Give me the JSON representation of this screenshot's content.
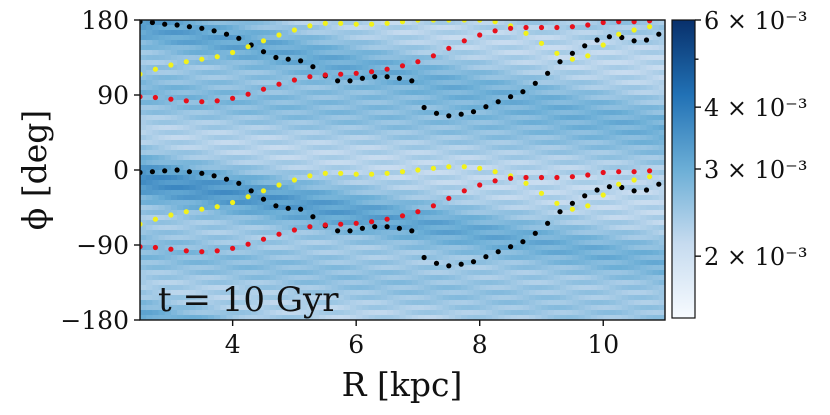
{
  "chart_data": {
    "type": "heatmap",
    "title": "",
    "xlabel": "R [kpc]",
    "ylabel": "ϕ [deg]",
    "xlim": [
      2.5,
      11.0
    ],
    "ylim": [
      -180,
      180
    ],
    "xticks": [
      4,
      6,
      8,
      10
    ],
    "xtick_labels": [
      "4",
      "6",
      "8",
      "10"
    ],
    "yticks": [
      -180,
      -90,
      0,
      90,
      180
    ],
    "ytick_labels": [
      "−180",
      "−90",
      "0",
      "90",
      "180"
    ],
    "annotation": "t = 10 Gyr",
    "colormap": "Blues",
    "colorbar": {
      "scale": "log",
      "range": [
        0.0015,
        0.006
      ],
      "ticks": [
        {
          "value": 0.006,
          "label": "6 × 10⁻³"
        },
        {
          "value": 0.004,
          "label": "4 × 10⁻³"
        },
        {
          "value": 0.003,
          "label": "3 × 10⁻³"
        },
        {
          "value": 0.002,
          "label": "2 × 10⁻³"
        }
      ],
      "minor_ticks": [
        0.005
      ]
    },
    "heatmap_ridges": [
      {
        "phi0": -10,
        "slope_deg_per_kpc": -12,
        "amplitude": 1.0
      },
      {
        "phi0": 175,
        "slope_deg_per_kpc": -14,
        "amplitude": 0.8
      },
      {
        "phi0": 95,
        "slope_deg_per_kpc": -8,
        "amplitude": 0.5
      },
      {
        "phi0": -95,
        "slope_deg_per_kpc": -10,
        "amplitude": 0.45
      }
    ],
    "series": [
      {
        "name": "black",
        "color": "#000000",
        "points": [
          {
            "R": 2.5,
            "phi": 178
          },
          {
            "R": 2.7,
            "phi": 177
          },
          {
            "R": 2.9,
            "phi": 175
          },
          {
            "R": 3.1,
            "phi": 174
          },
          {
            "R": 3.3,
            "phi": 172
          },
          {
            "R": 3.5,
            "phi": 170
          },
          {
            "R": 3.7,
            "phi": 167
          },
          {
            "R": 3.9,
            "phi": 163
          },
          {
            "R": 4.1,
            "phi": 158
          },
          {
            "R": 4.3,
            "phi": 150
          },
          {
            "R": 4.5,
            "phi": 142
          },
          {
            "R": 4.7,
            "phi": 135
          },
          {
            "R": 4.9,
            "phi": 133
          },
          {
            "R": 5.1,
            "phi": 131
          },
          {
            "R": 5.3,
            "phi": 124
          },
          {
            "R": 5.5,
            "phi": 113
          },
          {
            "R": 5.7,
            "phi": 107
          },
          {
            "R": 5.9,
            "phi": 107
          },
          {
            "R": 6.1,
            "phi": 110
          },
          {
            "R": 6.3,
            "phi": 112
          },
          {
            "R": 6.5,
            "phi": 112
          },
          {
            "R": 6.7,
            "phi": 110
          },
          {
            "R": 6.9,
            "phi": 107
          },
          {
            "R": 7.1,
            "phi": 75
          },
          {
            "R": 7.3,
            "phi": 68
          },
          {
            "R": 7.5,
            "phi": 65
          },
          {
            "R": 7.7,
            "phi": 67
          },
          {
            "R": 7.9,
            "phi": 70
          },
          {
            "R": 8.1,
            "phi": 76
          },
          {
            "R": 8.3,
            "phi": 82
          },
          {
            "R": 8.5,
            "phi": 88
          },
          {
            "R": 8.7,
            "phi": 94
          },
          {
            "R": 8.9,
            "phi": 104
          },
          {
            "R": 9.1,
            "phi": 116
          },
          {
            "R": 9.3,
            "phi": 130
          },
          {
            "R": 9.5,
            "phi": 140
          },
          {
            "R": 9.7,
            "phi": 149
          },
          {
            "R": 9.9,
            "phi": 156
          },
          {
            "R": 10.1,
            "phi": 160
          },
          {
            "R": 10.3,
            "phi": 159
          },
          {
            "R": 10.5,
            "phi": 155
          },
          {
            "R": 10.7,
            "phi": 156
          },
          {
            "R": 10.9,
            "phi": 163
          },
          {
            "R": 2.5,
            "phi": -3
          },
          {
            "R": 2.7,
            "phi": -2
          },
          {
            "R": 2.9,
            "phi": -1
          },
          {
            "R": 3.1,
            "phi": 0
          },
          {
            "R": 3.3,
            "phi": -2
          },
          {
            "R": 3.5,
            "phi": -4
          },
          {
            "R": 3.7,
            "phi": -7
          },
          {
            "R": 3.9,
            "phi": -11
          },
          {
            "R": 4.1,
            "phi": -16
          },
          {
            "R": 4.3,
            "phi": -25
          },
          {
            "R": 4.5,
            "phi": -35
          },
          {
            "R": 4.7,
            "phi": -43
          },
          {
            "R": 4.9,
            "phi": -46
          },
          {
            "R": 5.1,
            "phi": -47
          },
          {
            "R": 5.3,
            "phi": -56
          },
          {
            "R": 5.5,
            "phi": -67
          },
          {
            "R": 5.7,
            "phi": -73
          },
          {
            "R": 5.9,
            "phi": -73
          },
          {
            "R": 6.1,
            "phi": -70
          },
          {
            "R": 6.3,
            "phi": -68
          },
          {
            "R": 6.5,
            "phi": -68
          },
          {
            "R": 6.7,
            "phi": -70
          },
          {
            "R": 6.9,
            "phi": -73
          },
          {
            "R": 7.1,
            "phi": -105
          },
          {
            "R": 7.3,
            "phi": -112
          },
          {
            "R": 7.5,
            "phi": -115
          },
          {
            "R": 7.7,
            "phi": -113
          },
          {
            "R": 7.9,
            "phi": -110
          },
          {
            "R": 8.1,
            "phi": -104
          },
          {
            "R": 8.3,
            "phi": -98
          },
          {
            "R": 8.5,
            "phi": -92
          },
          {
            "R": 8.7,
            "phi": -86
          },
          {
            "R": 8.9,
            "phi": -76
          },
          {
            "R": 9.1,
            "phi": -64
          },
          {
            "R": 9.3,
            "phi": -50
          },
          {
            "R": 9.5,
            "phi": -40
          },
          {
            "R": 9.7,
            "phi": -31
          },
          {
            "R": 9.9,
            "phi": -24
          },
          {
            "R": 10.1,
            "phi": -20
          },
          {
            "R": 10.3,
            "phi": -21
          },
          {
            "R": 10.5,
            "phi": -25
          },
          {
            "R": 10.7,
            "phi": -24
          },
          {
            "R": 10.9,
            "phi": -17
          }
        ]
      },
      {
        "name": "yellow",
        "color": "#f2f21a",
        "points": [
          {
            "R": 2.5,
            "phi": 115
          },
          {
            "R": 2.75,
            "phi": 121
          },
          {
            "R": 3.0,
            "phi": 126
          },
          {
            "R": 3.25,
            "phi": 130
          },
          {
            "R": 3.5,
            "phi": 133
          },
          {
            "R": 3.75,
            "phi": 136
          },
          {
            "R": 4.0,
            "phi": 141
          },
          {
            "R": 4.25,
            "phi": 148
          },
          {
            "R": 4.5,
            "phi": 155
          },
          {
            "R": 4.75,
            "phi": 162
          },
          {
            "R": 5.0,
            "phi": 168
          },
          {
            "R": 5.25,
            "phi": 173
          },
          {
            "R": 5.5,
            "phi": 176
          },
          {
            "R": 5.75,
            "phi": 176
          },
          {
            "R": 6.0,
            "phi": 175
          },
          {
            "R": 6.25,
            "phi": 175
          },
          {
            "R": 6.5,
            "phi": 176
          },
          {
            "R": 6.75,
            "phi": 178
          },
          {
            "R": 7.0,
            "phi": 180
          },
          {
            "R": 7.25,
            "phi": 180
          },
          {
            "R": 7.5,
            "phi": 180
          },
          {
            "R": 7.75,
            "phi": 180
          },
          {
            "R": 8.0,
            "phi": 180
          },
          {
            "R": 8.25,
            "phi": 178
          },
          {
            "R": 8.5,
            "phi": 173
          },
          {
            "R": 8.75,
            "phi": 164
          },
          {
            "R": 9.0,
            "phi": 152
          },
          {
            "R": 9.25,
            "phi": 140
          },
          {
            "R": 9.5,
            "phi": 133
          },
          {
            "R": 9.75,
            "phi": 137
          },
          {
            "R": 10.0,
            "phi": 150
          },
          {
            "R": 10.25,
            "phi": 163
          },
          {
            "R": 10.5,
            "phi": 168
          },
          {
            "R": 10.75,
            "phi": 172
          },
          {
            "R": 2.5,
            "phi": -65
          },
          {
            "R": 2.75,
            "phi": -59
          },
          {
            "R": 3.0,
            "phi": -54
          },
          {
            "R": 3.25,
            "phi": -50
          },
          {
            "R": 3.5,
            "phi": -47
          },
          {
            "R": 3.75,
            "phi": -44
          },
          {
            "R": 4.0,
            "phi": -39
          },
          {
            "R": 4.25,
            "phi": -32
          },
          {
            "R": 4.5,
            "phi": -25
          },
          {
            "R": 4.75,
            "phi": -18
          },
          {
            "R": 5.0,
            "phi": -12
          },
          {
            "R": 5.25,
            "phi": -7
          },
          {
            "R": 5.5,
            "phi": -4
          },
          {
            "R": 5.75,
            "phi": -4
          },
          {
            "R": 6.0,
            "phi": -5
          },
          {
            "R": 6.25,
            "phi": -5
          },
          {
            "R": 6.5,
            "phi": -4
          },
          {
            "R": 6.75,
            "phi": -2
          },
          {
            "R": 7.0,
            "phi": 0
          },
          {
            "R": 7.25,
            "phi": 2
          },
          {
            "R": 7.5,
            "phi": 4
          },
          {
            "R": 7.75,
            "phi": 4
          },
          {
            "R": 8.0,
            "phi": 2
          },
          {
            "R": 8.25,
            "phi": -2
          },
          {
            "R": 8.5,
            "phi": -7
          },
          {
            "R": 8.75,
            "phi": -16
          },
          {
            "R": 9.0,
            "phi": -28
          },
          {
            "R": 9.25,
            "phi": -40
          },
          {
            "R": 9.5,
            "phi": -47
          },
          {
            "R": 9.75,
            "phi": -43
          },
          {
            "R": 10.0,
            "phi": -30
          },
          {
            "R": 10.25,
            "phi": -17
          },
          {
            "R": 10.5,
            "phi": -12
          },
          {
            "R": 10.75,
            "phi": -8
          }
        ]
      },
      {
        "name": "red",
        "color": "#e8101c",
        "points": [
          {
            "R": 2.5,
            "phi": 88
          },
          {
            "R": 2.75,
            "phi": 87
          },
          {
            "R": 3.0,
            "phi": 85
          },
          {
            "R": 3.25,
            "phi": 83
          },
          {
            "R": 3.5,
            "phi": 82
          },
          {
            "R": 3.75,
            "phi": 83
          },
          {
            "R": 4.0,
            "phi": 86
          },
          {
            "R": 4.25,
            "phi": 91
          },
          {
            "R": 4.5,
            "phi": 97
          },
          {
            "R": 4.75,
            "phi": 103
          },
          {
            "R": 5.0,
            "phi": 108
          },
          {
            "R": 5.25,
            "phi": 112
          },
          {
            "R": 5.5,
            "phi": 114
          },
          {
            "R": 5.75,
            "phi": 115
          },
          {
            "R": 6.0,
            "phi": 116
          },
          {
            "R": 6.25,
            "phi": 118
          },
          {
            "R": 6.5,
            "phi": 121
          },
          {
            "R": 6.75,
            "phi": 125
          },
          {
            "R": 7.0,
            "phi": 130
          },
          {
            "R": 7.25,
            "phi": 137
          },
          {
            "R": 7.5,
            "phi": 146
          },
          {
            "R": 7.75,
            "phi": 155
          },
          {
            "R": 8.0,
            "phi": 162
          },
          {
            "R": 8.25,
            "phi": 167
          },
          {
            "R": 8.5,
            "phi": 170
          },
          {
            "R": 8.75,
            "phi": 171
          },
          {
            "R": 9.0,
            "phi": 171
          },
          {
            "R": 9.25,
            "phi": 171
          },
          {
            "R": 9.5,
            "phi": 172
          },
          {
            "R": 9.75,
            "phi": 174
          },
          {
            "R": 10.0,
            "phi": 177
          },
          {
            "R": 10.25,
            "phi": 178
          },
          {
            "R": 10.5,
            "phi": 178
          },
          {
            "R": 10.75,
            "phi": 179
          },
          {
            "R": 2.5,
            "phi": -92
          },
          {
            "R": 2.75,
            "phi": -93
          },
          {
            "R": 3.0,
            "phi": -95
          },
          {
            "R": 3.25,
            "phi": -97
          },
          {
            "R": 3.5,
            "phi": -98
          },
          {
            "R": 3.75,
            "phi": -97
          },
          {
            "R": 4.0,
            "phi": -94
          },
          {
            "R": 4.25,
            "phi": -89
          },
          {
            "R": 4.5,
            "phi": -83
          },
          {
            "R": 4.75,
            "phi": -77
          },
          {
            "R": 5.0,
            "phi": -72
          },
          {
            "R": 5.25,
            "phi": -68
          },
          {
            "R": 5.5,
            "phi": -66
          },
          {
            "R": 5.75,
            "phi": -65
          },
          {
            "R": 6.0,
            "phi": -64
          },
          {
            "R": 6.25,
            "phi": -62
          },
          {
            "R": 6.5,
            "phi": -59
          },
          {
            "R": 6.75,
            "phi": -55
          },
          {
            "R": 7.0,
            "phi": -50
          },
          {
            "R": 7.25,
            "phi": -43
          },
          {
            "R": 7.5,
            "phi": -34
          },
          {
            "R": 7.75,
            "phi": -25
          },
          {
            "R": 8.0,
            "phi": -18
          },
          {
            "R": 8.25,
            "phi": -13
          },
          {
            "R": 8.5,
            "phi": -10
          },
          {
            "R": 8.75,
            "phi": -9
          },
          {
            "R": 9.0,
            "phi": -9
          },
          {
            "R": 9.25,
            "phi": -9
          },
          {
            "R": 9.5,
            "phi": -8
          },
          {
            "R": 9.75,
            "phi": -6
          },
          {
            "R": 10.0,
            "phi": -3
          },
          {
            "R": 10.25,
            "phi": -2
          },
          {
            "R": 10.5,
            "phi": -2
          },
          {
            "R": 10.75,
            "phi": -1
          }
        ]
      }
    ]
  }
}
